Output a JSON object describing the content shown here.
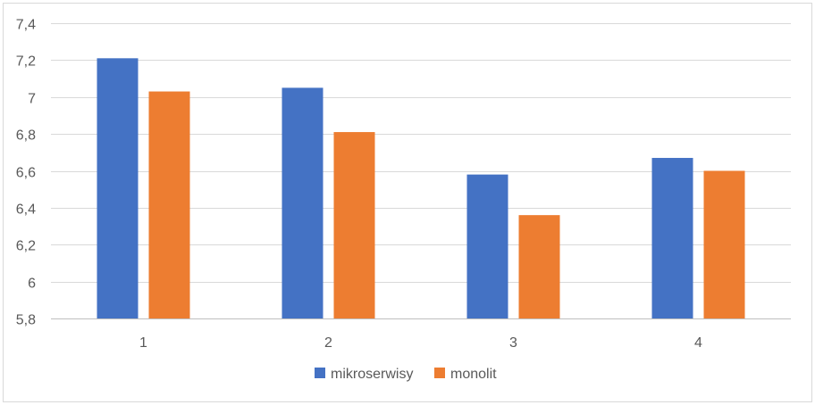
{
  "chart_data": {
    "type": "bar",
    "categories": [
      "1",
      "2",
      "3",
      "4"
    ],
    "series": [
      {
        "name": "mikroserwisy",
        "color": "#4472C4",
        "values": [
          7.21,
          7.05,
          6.58,
          6.67
        ]
      },
      {
        "name": "monolit",
        "color": "#ED7D31",
        "values": [
          7.03,
          6.81,
          6.36,
          6.6
        ]
      }
    ],
    "ylim": [
      5.8,
      7.4
    ],
    "yticks": [
      "5,8",
      "6",
      "6,2",
      "6,4",
      "6,6",
      "6,8",
      "7",
      "7,2",
      "7,4"
    ],
    "grid": true,
    "legend": "bottom"
  }
}
